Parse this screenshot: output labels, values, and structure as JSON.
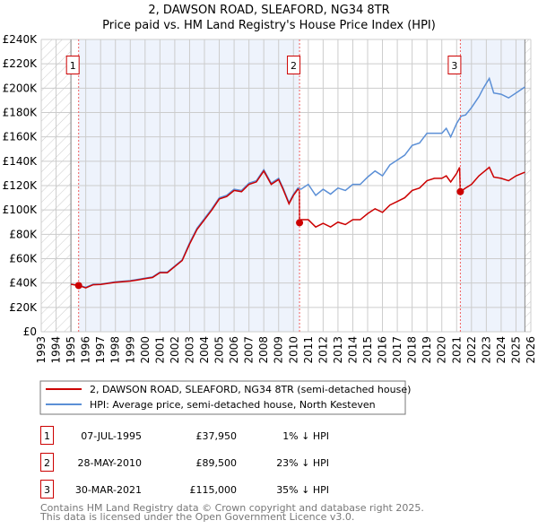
{
  "chart_data": {
    "type": "line",
    "title": "2, DAWSON ROAD, SLEAFORD, NG34 8TR",
    "subtitle": "Price paid vs. HM Land Registry's House Price Index (HPI)",
    "xlim": [
      1993,
      2026
    ],
    "ylim": [
      0,
      240000
    ],
    "yticks": [
      0,
      20000,
      40000,
      60000,
      80000,
      100000,
      120000,
      140000,
      160000,
      180000,
      200000,
      220000,
      240000
    ],
    "ytick_labels": [
      "£0",
      "£20K",
      "£40K",
      "£60K",
      "£80K",
      "£100K",
      "£120K",
      "£140K",
      "£160K",
      "£180K",
      "£200K",
      "£220K",
      "£240K"
    ],
    "xtick_labels": [
      "1993",
      "1994",
      "1995",
      "1996",
      "1997",
      "1998",
      "1999",
      "2000",
      "2001",
      "2002",
      "2003",
      "2004",
      "2005",
      "2006",
      "2007",
      "2008",
      "2009",
      "2010",
      "2011",
      "2012",
      "2013",
      "2014",
      "2015",
      "2016",
      "2017",
      "2018",
      "2019",
      "2020",
      "2021",
      "2022",
      "2023",
      "2024",
      "2025",
      "2026"
    ],
    "grid": true,
    "series": [
      {
        "name": "2, DAWSON ROAD, SLEAFORD, NG34 8TR (semi-detached house)",
        "color": "#cc0000",
        "x": [
          1995,
          1995.52,
          1996,
          1996.5,
          1997,
          1998,
          1999,
          1999.5,
          2000,
          2000.5,
          2001,
          2001.5,
          2002,
          2002.5,
          2003,
          2003.5,
          2004,
          2004.5,
          2005,
          2005.5,
          2006,
          2006.5,
          2007,
          2007.5,
          2008,
          2008.5,
          2009,
          2009.3,
          2009.7,
          2010,
          2010.3,
          2010.4,
          2010.41,
          2010.5,
          2011,
          2011.5,
          2012,
          2012.5,
          2013,
          2013.5,
          2014,
          2014.5,
          2015,
          2015.5,
          2016,
          2016.5,
          2017,
          2017.5,
          2018,
          2018.5,
          2019,
          2019.5,
          2020,
          2020.3,
          2020.6,
          2021,
          2021.2,
          2021.25,
          2021.6,
          2022,
          2022.5,
          2022.8,
          2023.2,
          2023.5,
          2024,
          2024.5,
          2025,
          2025.6
        ],
        "y": [
          39000,
          37950,
          36000,
          38600,
          38800,
          40600,
          41600,
          42500,
          43600,
          44500,
          48500,
          48500,
          53500,
          58500,
          72000,
          84000,
          92000,
          100000,
          109000,
          111000,
          116000,
          115000,
          121000,
          123000,
          132000,
          121000,
          125000,
          117000,
          105000,
          112000,
          117000,
          116000,
          89500,
          92000,
          92000,
          86000,
          89000,
          86000,
          90000,
          88000,
          92000,
          92000,
          97000,
          101000,
          98000,
          104000,
          107000,
          110000,
          116000,
          118000,
          124000,
          126000,
          126000,
          128000,
          123000,
          130000,
          135000,
          115000,
          118000,
          121000,
          128000,
          131000,
          135000,
          127000,
          126000,
          124000,
          128000,
          131000
        ]
      },
      {
        "name": "HPI: Average price, semi-detached house, North Kesteven",
        "color": "#5b8fd6",
        "x": [
          1995,
          1995.5,
          1996,
          1996.5,
          1997,
          1998,
          1999,
          1999.5,
          2000,
          2000.5,
          2001,
          2001.5,
          2002,
          2002.5,
          2003,
          2003.5,
          2004,
          2004.5,
          2005,
          2005.5,
          2006,
          2006.5,
          2007,
          2007.5,
          2008,
          2008.5,
          2009,
          2009.3,
          2009.7,
          2010,
          2010.3,
          2010.5,
          2011,
          2011.5,
          2012,
          2012.5,
          2013,
          2013.5,
          2014,
          2014.5,
          2015,
          2015.5,
          2016,
          2016.5,
          2017,
          2017.5,
          2018,
          2018.5,
          2019,
          2019.5,
          2020,
          2020.3,
          2020.6,
          2021,
          2021.3,
          2021.6,
          2022,
          2022.5,
          2022.8,
          2023.2,
          2023.5,
          2024,
          2024.5,
          2025,
          2025.6
        ],
        "y": [
          39000,
          38300,
          36500,
          39000,
          39000,
          41000,
          42000,
          43000,
          44000,
          45000,
          49000,
          49000,
          54000,
          59000,
          73000,
          85000,
          93000,
          101000,
          110000,
          112000,
          117000,
          116000,
          122000,
          124000,
          133000,
          122000,
          126000,
          118000,
          106000,
          113000,
          118000,
          117000,
          121000,
          112000,
          117000,
          113000,
          118000,
          116000,
          121000,
          121000,
          127000,
          132000,
          128000,
          137000,
          141000,
          145000,
          153000,
          155000,
          163000,
          163000,
          163000,
          167000,
          160000,
          171000,
          177000,
          178000,
          184000,
          193000,
          200000,
          208000,
          196000,
          195000,
          192000,
          196000,
          201000
        ]
      }
    ],
    "sales": [
      {
        "label": "1",
        "year": 1995.52,
        "price": 37950,
        "date": "07-JUL-1995",
        "price_text": "£37,950",
        "hpi_text": "1% ↓ HPI"
      },
      {
        "label": "2",
        "year": 2010.41,
        "price": 89500,
        "date": "28-MAY-2010",
        "price_text": "£89,500",
        "hpi_text": "23% ↓ HPI"
      },
      {
        "label": "3",
        "year": 2021.25,
        "price": 115000,
        "date": "30-MAR-2021",
        "price_text": "£115,000",
        "hpi_text": "35% ↓ HPI"
      }
    ],
    "data_range": [
      1995,
      2025.6
    ]
  },
  "footer": {
    "line1": "Contains HM Land Registry data © Crown copyright and database right 2025.",
    "line2": "This data is licensed under the Open Government Licence v3.0."
  }
}
